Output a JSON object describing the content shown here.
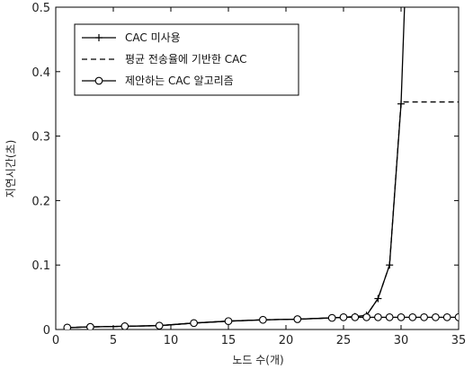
{
  "chart_data": {
    "type": "line",
    "xlabel": "노드 수(개)",
    "ylabel": "지연시간(초)",
    "xlim": [
      0,
      35
    ],
    "ylim": [
      0,
      0.5
    ],
    "x_ticks": [
      0,
      5,
      10,
      15,
      20,
      25,
      30,
      35
    ],
    "y_ticks": [
      0,
      0.1,
      0.2,
      0.3,
      0.4,
      0.5
    ],
    "x_tick_labels": [
      "0",
      "5",
      "10",
      "15",
      "20",
      "25",
      "30",
      "35"
    ],
    "y_tick_labels": [
      "0",
      "0.1",
      "0.2",
      "0.3",
      "0.4",
      "0.5"
    ],
    "grid": false,
    "legend_position": "top-left",
    "series": [
      {
        "name": "CAC 미사용",
        "style": "solid",
        "marker": "plus",
        "x": [
          1,
          3,
          6,
          9,
          12,
          15,
          18,
          21,
          24,
          25,
          26,
          27,
          28,
          29,
          30,
          30.3
        ],
        "y": [
          0.003,
          0.004,
          0.005,
          0.006,
          0.01,
          0.013,
          0.015,
          0.016,
          0.018,
          0.019,
          0.02,
          0.022,
          0.048,
          0.1,
          0.35,
          0.5
        ]
      },
      {
        "name": "평균 전송율에 기반한 CAC",
        "style": "dashed",
        "marker": "none",
        "x": [
          1,
          3,
          6,
          9,
          12,
          15,
          18,
          21,
          24,
          25,
          26,
          27,
          28,
          29,
          30,
          35
        ],
        "y": [
          0.003,
          0.004,
          0.005,
          0.006,
          0.01,
          0.013,
          0.015,
          0.016,
          0.018,
          0.019,
          0.02,
          0.022,
          0.048,
          0.1,
          0.353,
          0.353
        ]
      },
      {
        "name": "제안하는 CAC 알고리즘",
        "style": "solid",
        "marker": "circle",
        "x": [
          1,
          3,
          6,
          9,
          12,
          15,
          18,
          21,
          24,
          25,
          26,
          27,
          28,
          29,
          30,
          31,
          32,
          33,
          34,
          35
        ],
        "y": [
          0.003,
          0.004,
          0.005,
          0.006,
          0.01,
          0.013,
          0.015,
          0.016,
          0.018,
          0.019,
          0.019,
          0.019,
          0.019,
          0.019,
          0.019,
          0.019,
          0.019,
          0.019,
          0.019,
          0.019
        ]
      }
    ]
  }
}
